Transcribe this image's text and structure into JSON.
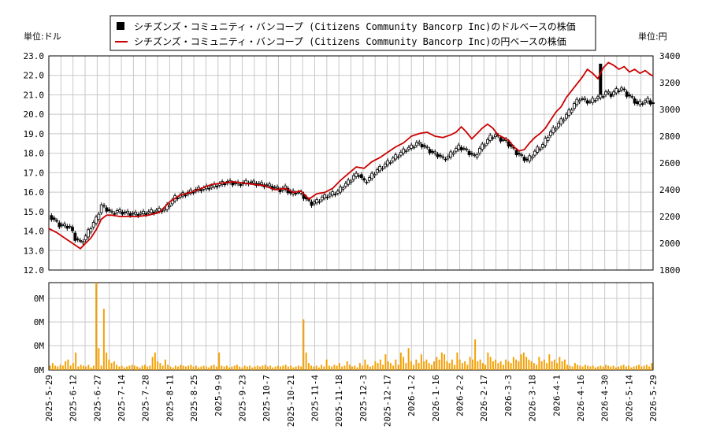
{
  "legend": {
    "series_usd": "シチズンズ・コミュニティ・バンコープ (Citizens Community Bancorp Inc)のドルベースの株価",
    "series_jpy": "シチズンズ・コミュニティ・バンコープ (Citizens Community Bancorp Inc)の円ベースの株価"
  },
  "left_unit": "単位:ドル",
  "right_unit": "単位:円",
  "colors": {
    "usd": "#000000",
    "jpy": "#cc0000",
    "volume": "#f5a000",
    "grid": "#c8c8c8"
  },
  "chart_data": {
    "type": "candlestick+line+bar",
    "x_tick_labels": [
      "2025-5-29",
      "2025-6-12",
      "2025-6-27",
      "2025-7-14",
      "2025-7-28",
      "2025-8-11",
      "2025-8-25",
      "2025-9-9",
      "2025-9-23",
      "2025-10-7",
      "2025-10-21",
      "2025-11-4",
      "2025-11-18",
      "2025-12-3",
      "2025-12-17",
      "2026-1-2",
      "2026-1-16",
      "2026-2-2",
      "2026-2-17",
      "2026-3-3",
      "2026-3-18",
      "2026-4-1",
      "2026-4-16",
      "2026-4-30",
      "2026-5-14",
      "2026-5-29"
    ],
    "left_axis": {
      "ticks": [
        "23.0",
        "22.0",
        "21.0",
        "20.0",
        "19.0",
        "18.0",
        "17.0",
        "16.0",
        "15.0",
        "14.0",
        "13.0",
        "12.0"
      ],
      "ylim": [
        12,
        23
      ]
    },
    "right_axis": {
      "ticks": [
        "3400",
        "3200",
        "3000",
        "2800",
        "2600",
        "2400",
        "2200",
        "2000",
        "1800"
      ],
      "ylim": [
        1800,
        3400
      ]
    },
    "volume_axis": {
      "ticks": [
        "0M",
        "0M",
        "0M",
        "0M"
      ]
    },
    "usd_close_points": [
      [
        0,
        14.8
      ],
      [
        4,
        14.3
      ],
      [
        8,
        14.2
      ],
      [
        10,
        13.6
      ],
      [
        12,
        13.4
      ],
      [
        14,
        13.7
      ],
      [
        16,
        14.2
      ],
      [
        18,
        14.6
      ],
      [
        20,
        15.3
      ],
      [
        22,
        15.1
      ],
      [
        24,
        14.9
      ],
      [
        26,
        15.0
      ],
      [
        28,
        14.95
      ],
      [
        30,
        14.9
      ],
      [
        33,
        14.85
      ],
      [
        36,
        14.9
      ],
      [
        40,
        15.0
      ],
      [
        44,
        15.1
      ],
      [
        48,
        15.7
      ],
      [
        52,
        15.9
      ],
      [
        56,
        16.1
      ],
      [
        60,
        16.2
      ],
      [
        64,
        16.35
      ],
      [
        68,
        16.5
      ],
      [
        72,
        16.4
      ],
      [
        76,
        16.5
      ],
      [
        80,
        16.4
      ],
      [
        84,
        16.3
      ],
      [
        88,
        16.1
      ],
      [
        90,
        16.2
      ],
      [
        92,
        15.9
      ],
      [
        94,
        16.0
      ],
      [
        96,
        15.9
      ],
      [
        98,
        15.6
      ],
      [
        100,
        15.4
      ],
      [
        102,
        15.5
      ],
      [
        104,
        15.7
      ],
      [
        106,
        15.8
      ],
      [
        108,
        15.9
      ],
      [
        110,
        16.0
      ],
      [
        112,
        16.3
      ],
      [
        114,
        16.5
      ],
      [
        116,
        16.8
      ],
      [
        118,
        16.9
      ],
      [
        120,
        16.5
      ],
      [
        122,
        16.7
      ],
      [
        124,
        17.0
      ],
      [
        126,
        17.2
      ],
      [
        128,
        17.4
      ],
      [
        130,
        17.6
      ],
      [
        132,
        17.8
      ],
      [
        134,
        18.0
      ],
      [
        136,
        18.2
      ],
      [
        138,
        18.3
      ],
      [
        140,
        18.5
      ],
      [
        142,
        18.4
      ],
      [
        144,
        18.2
      ],
      [
        146,
        18.0
      ],
      [
        148,
        17.9
      ],
      [
        150,
        17.7
      ],
      [
        152,
        17.8
      ],
      [
        154,
        18.1
      ],
      [
        156,
        18.3
      ],
      [
        158,
        18.2
      ],
      [
        160,
        18.0
      ],
      [
        162,
        17.8
      ],
      [
        164,
        18.2
      ],
      [
        166,
        18.5
      ],
      [
        168,
        18.8
      ],
      [
        170,
        18.9
      ],
      [
        172,
        18.7
      ],
      [
        174,
        18.6
      ],
      [
        176,
        18.3
      ],
      [
        178,
        18.0
      ],
      [
        180,
        17.8
      ],
      [
        182,
        17.6
      ],
      [
        184,
        17.9
      ],
      [
        186,
        18.2
      ],
      [
        188,
        18.4
      ],
      [
        190,
        18.9
      ],
      [
        192,
        19.2
      ],
      [
        194,
        19.5
      ],
      [
        196,
        19.8
      ],
      [
        198,
        20.1
      ],
      [
        200,
        20.5
      ],
      [
        202,
        20.8
      ],
      [
        204,
        20.7
      ],
      [
        206,
        20.6
      ],
      [
        208,
        20.8
      ],
      [
        210,
        20.9
      ],
      [
        212,
        21.1
      ],
      [
        214,
        21.0
      ],
      [
        216,
        21.2
      ],
      [
        218,
        21.3
      ],
      [
        220,
        21.0
      ],
      [
        222,
        20.8
      ],
      [
        224,
        20.5
      ],
      [
        226,
        20.6
      ],
      [
        228,
        20.7
      ],
      [
        230,
        20.5
      ]
    ],
    "jpy_points": [
      [
        0,
        2110
      ],
      [
        3,
        2080
      ],
      [
        6,
        2040
      ],
      [
        9,
        2000
      ],
      [
        12,
        1960
      ],
      [
        14,
        2000
      ],
      [
        16,
        2040
      ],
      [
        18,
        2100
      ],
      [
        20,
        2180
      ],
      [
        22,
        2210
      ],
      [
        24,
        2210
      ],
      [
        27,
        2200
      ],
      [
        30,
        2200
      ],
      [
        34,
        2200
      ],
      [
        38,
        2210
      ],
      [
        42,
        2230
      ],
      [
        46,
        2310
      ],
      [
        50,
        2360
      ],
      [
        54,
        2380
      ],
      [
        58,
        2410
      ],
      [
        62,
        2440
      ],
      [
        66,
        2450
      ],
      [
        70,
        2460
      ],
      [
        74,
        2450
      ],
      [
        78,
        2440
      ],
      [
        82,
        2430
      ],
      [
        86,
        2400
      ],
      [
        90,
        2410
      ],
      [
        93,
        2380
      ],
      [
        96,
        2390
      ],
      [
        99,
        2330
      ],
      [
        102,
        2370
      ],
      [
        105,
        2380
      ],
      [
        108,
        2410
      ],
      [
        111,
        2470
      ],
      [
        114,
        2520
      ],
      [
        117,
        2570
      ],
      [
        120,
        2560
      ],
      [
        123,
        2610
      ],
      [
        126,
        2640
      ],
      [
        129,
        2680
      ],
      [
        132,
        2720
      ],
      [
        135,
        2750
      ],
      [
        138,
        2800
      ],
      [
        141,
        2820
      ],
      [
        144,
        2830
      ],
      [
        147,
        2800
      ],
      [
        150,
        2790
      ],
      [
        153,
        2810
      ],
      [
        155,
        2830
      ],
      [
        157,
        2870
      ],
      [
        159,
        2830
      ],
      [
        161,
        2780
      ],
      [
        163,
        2820
      ],
      [
        165,
        2860
      ],
      [
        167,
        2890
      ],
      [
        169,
        2860
      ],
      [
        171,
        2810
      ],
      [
        173,
        2790
      ],
      [
        175,
        2770
      ],
      [
        177,
        2720
      ],
      [
        179,
        2690
      ],
      [
        181,
        2700
      ],
      [
        183,
        2750
      ],
      [
        185,
        2790
      ],
      [
        187,
        2820
      ],
      [
        189,
        2860
      ],
      [
        191,
        2920
      ],
      [
        193,
        2980
      ],
      [
        195,
        3020
      ],
      [
        197,
        3090
      ],
      [
        199,
        3140
      ],
      [
        201,
        3190
      ],
      [
        203,
        3240
      ],
      [
        205,
        3300
      ],
      [
        207,
        3270
      ],
      [
        209,
        3230
      ],
      [
        211,
        3310
      ],
      [
        213,
        3350
      ],
      [
        215,
        3330
      ],
      [
        217,
        3300
      ],
      [
        219,
        3320
      ],
      [
        221,
        3280
      ],
      [
        223,
        3300
      ],
      [
        225,
        3270
      ],
      [
        227,
        3290
      ],
      [
        229,
        3260
      ],
      [
        230,
        3250
      ]
    ],
    "volume_relative": [
      0.05,
      0.08,
      0.05,
      0.04,
      0.06,
      0.05,
      0.1,
      0.12,
      0.05,
      0.08,
      0.2,
      0.04,
      0.06,
      0.05,
      0.04,
      0.06,
      0.03,
      0.05,
      1.0,
      0.25,
      0.05,
      0.7,
      0.2,
      0.12,
      0.08,
      0.1,
      0.06,
      0.04,
      0.05,
      0.03,
      0.04,
      0.05,
      0.06,
      0.05,
      0.04,
      0.03,
      0.05,
      0.06,
      0.04,
      0.05,
      0.15,
      0.2,
      0.1,
      0.08,
      0.05,
      0.12,
      0.06,
      0.04,
      0.03,
      0.05,
      0.04,
      0.06,
      0.05,
      0.04,
      0.05,
      0.06,
      0.04,
      0.05,
      0.03,
      0.04,
      0.05,
      0.04,
      0.03,
      0.05,
      0.06,
      0.04,
      0.2,
      0.05,
      0.04,
      0.05,
      0.03,
      0.04,
      0.05,
      0.06,
      0.04,
      0.03,
      0.05,
      0.04,
      0.05,
      0.03,
      0.04,
      0.05,
      0.04,
      0.05,
      0.06,
      0.04,
      0.05,
      0.03,
      0.04,
      0.05,
      0.04,
      0.05,
      0.06,
      0.04,
      0.05,
      0.03,
      0.04,
      0.05,
      0.04,
      0.58,
      0.2,
      0.08,
      0.05,
      0.04,
      0.05,
      0.03,
      0.06,
      0.04,
      0.12,
      0.05,
      0.04,
      0.06,
      0.05,
      0.08,
      0.04,
      0.05,
      0.1,
      0.06,
      0.04,
      0.05,
      0.03,
      0.08,
      0.05,
      0.12,
      0.06,
      0.04,
      0.05,
      0.1,
      0.08,
      0.12,
      0.06,
      0.18,
      0.1,
      0.08,
      0.05,
      0.12,
      0.06,
      0.2,
      0.15,
      0.08,
      0.25,
      0.1,
      0.06,
      0.12,
      0.08,
      0.18,
      0.1,
      0.12,
      0.08,
      0.06,
      0.1,
      0.15,
      0.12,
      0.2,
      0.18,
      0.1,
      0.08,
      0.12,
      0.06,
      0.2,
      0.12,
      0.08,
      0.1,
      0.06,
      0.15,
      0.12,
      0.35,
      0.1,
      0.12,
      0.08,
      0.06,
      0.2,
      0.15,
      0.1,
      0.12,
      0.08,
      0.1,
      0.06,
      0.12,
      0.1,
      0.08,
      0.15,
      0.12,
      0.1,
      0.18,
      0.2,
      0.15,
      0.12,
      0.1,
      0.08,
      0.06,
      0.15,
      0.1,
      0.12,
      0.08,
      0.18,
      0.1,
      0.12,
      0.08,
      0.15,
      0.1,
      0.12,
      0.06,
      0.05,
      0.04,
      0.08,
      0.06,
      0.05,
      0.04,
      0.06,
      0.05,
      0.04,
      0.05,
      0.03,
      0.04,
      0.05,
      0.04,
      0.06,
      0.05,
      0.04,
      0.05,
      0.03,
      0.04,
      0.05,
      0.06,
      0.04,
      0.05,
      0.03,
      0.04,
      0.05,
      0.06,
      0.04,
      0.05,
      0.06,
      0.04,
      0.08
    ]
  }
}
